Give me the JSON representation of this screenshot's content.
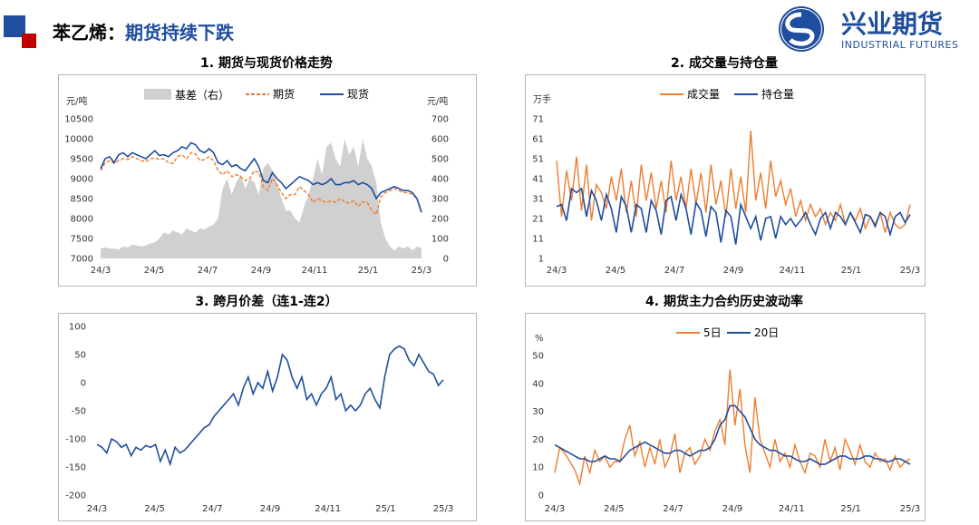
{
  "header": {
    "title_prefix": "苯乙烯：",
    "title_highlight": "期货持续下跌",
    "logo_cn": "兴业期货",
    "logo_en": "INDUSTRIAL FUTURES"
  },
  "colors": {
    "orange": "#ed7d31",
    "navy": "#1f4e9f",
    "gray": "#d0d0d0",
    "accent_red": "#c00000"
  },
  "chart_data": [
    {
      "type": "line",
      "title": "1. 期货与现货价格走势",
      "ylabel": "元/吨",
      "y2label": "元/吨",
      "ylim": [
        7000,
        10500
      ],
      "y2lim": [
        0,
        700
      ],
      "yticks": [
        7000,
        7500,
        8000,
        8500,
        9000,
        9500,
        10000,
        10500
      ],
      "y2ticks": [
        0,
        100,
        200,
        300,
        400,
        500,
        600,
        700
      ],
      "xticks": [
        "24/3",
        "24/5",
        "24/7",
        "24/9",
        "24/11",
        "25/1",
        "25/3"
      ],
      "legend": "top-center",
      "series": [
        {
          "name": "基差（右）",
          "kind": "area",
          "axis": "right",
          "values": [
            50,
            55,
            50,
            48,
            45,
            60,
            55,
            70,
            65,
            60,
            65,
            75,
            80,
            100,
            130,
            120,
            140,
            130,
            120,
            150,
            140,
            130,
            150,
            145,
            160,
            170,
            200,
            350,
            400,
            320,
            380,
            420,
            350,
            400,
            380,
            320,
            450,
            480,
            440,
            380,
            300,
            240,
            240,
            200,
            180,
            260,
            320,
            400,
            500,
            420,
            560,
            580,
            500,
            460,
            600,
            520,
            560,
            460,
            600,
            500,
            460,
            380,
            180,
            100,
            60,
            40,
            60,
            50,
            60,
            40,
            60,
            50
          ]
        },
        {
          "name": "期货",
          "kind": "dashed-line",
          "axis": "left",
          "values": [
            9200,
            9400,
            9450,
            9380,
            9450,
            9500,
            9480,
            9550,
            9500,
            9450,
            9420,
            9500,
            9520,
            9480,
            9500,
            9400,
            9380,
            9550,
            9600,
            9500,
            9650,
            9620,
            9450,
            9480,
            9550,
            9450,
            9200,
            9100,
            9200,
            9050,
            9100,
            9050,
            8950,
            9000,
            9200,
            9150,
            8800,
            8700,
            9000,
            8850,
            8650,
            8500,
            8600,
            8600,
            8800,
            8700,
            8600,
            8400,
            8500,
            8450,
            8400,
            8450,
            8400,
            8500,
            8420,
            8380,
            8450,
            8300,
            8420,
            8400,
            8200,
            8100,
            8550,
            8650,
            8700,
            8750,
            8700,
            8650,
            8650,
            8600,
            8500,
            8200
          ]
        },
        {
          "name": "现货",
          "kind": "line",
          "axis": "left",
          "values": [
            9250,
            9500,
            9550,
            9400,
            9600,
            9650,
            9550,
            9650,
            9600,
            9550,
            9500,
            9600,
            9700,
            9580,
            9600,
            9550,
            9650,
            9700,
            9800,
            9750,
            9900,
            9850,
            9700,
            9650,
            9750,
            9650,
            9400,
            9350,
            9450,
            9300,
            9350,
            9250,
            9200,
            9350,
            9500,
            9300,
            8950,
            8900,
            9150,
            9000,
            8900,
            8750,
            8850,
            8950,
            9050,
            9000,
            8950,
            8850,
            8900,
            8850,
            8900,
            9000,
            8850,
            8850,
            8900,
            8900,
            8950,
            8850,
            8900,
            8850,
            8750,
            8500,
            8650,
            8700,
            8750,
            8800,
            8750,
            8700,
            8700,
            8650,
            8500,
            8150
          ]
        }
      ]
    },
    {
      "type": "line",
      "title": "2. 成交量与持仓量",
      "ylabel": "万手",
      "ylim": [
        1,
        71
      ],
      "yticks": [
        1,
        11,
        21,
        31,
        41,
        51,
        61,
        71
      ],
      "xticks": [
        "24/3",
        "24/5",
        "24/7",
        "24/9",
        "24/11",
        "25/1",
        "25/3"
      ],
      "legend": "top-center",
      "series": [
        {
          "name": "成交量",
          "values": [
            50,
            22,
            45,
            30,
            52,
            25,
            48,
            20,
            38,
            34,
            26,
            42,
            30,
            46,
            24,
            40,
            22,
            48,
            30,
            44,
            26,
            40,
            24,
            50,
            30,
            42,
            26,
            46,
            28,
            44,
            24,
            48,
            28,
            40,
            22,
            46,
            26,
            42,
            24,
            65,
            30,
            44,
            26,
            50,
            32,
            40,
            28,
            36,
            22,
            30,
            20,
            28,
            22,
            26,
            18,
            24,
            20,
            28,
            18,
            24,
            20,
            26,
            16,
            22,
            18,
            24,
            14,
            24,
            18,
            16,
            18,
            28
          ]
        },
        {
          "name": "持仓量",
          "values": [
            27,
            28,
            20,
            36,
            34,
            36,
            22,
            35,
            30,
            20,
            33,
            26,
            14,
            32,
            27,
            14,
            28,
            26,
            14,
            30,
            25,
            13,
            30,
            32,
            20,
            33,
            26,
            13,
            29,
            25,
            12,
            27,
            24,
            9,
            25,
            22,
            8,
            28,
            22,
            16,
            22,
            10,
            21,
            22,
            11,
            22,
            18,
            21,
            17,
            20,
            24,
            18,
            13,
            21,
            24,
            16,
            24,
            22,
            18,
            24,
            19,
            14,
            23,
            22,
            17,
            24,
            22,
            13,
            22,
            24,
            19,
            23
          ]
        }
      ]
    },
    {
      "type": "line",
      "title": "3. 跨月价差（连1-连2）",
      "ylim": [
        -200,
        100
      ],
      "yticks": [
        -200,
        -150,
        -100,
        -50,
        0,
        50,
        100
      ],
      "xticks": [
        "24/3",
        "24/5",
        "24/7",
        "24/9",
        "24/11",
        "25/1",
        "25/3"
      ],
      "series": [
        {
          "name": "连1-连2",
          "values": [
            -110,
            -115,
            -125,
            -100,
            -105,
            -115,
            -110,
            -130,
            -115,
            -120,
            -112,
            -115,
            -110,
            -140,
            -120,
            -145,
            -115,
            -125,
            -120,
            -110,
            -100,
            -90,
            -80,
            -75,
            -60,
            -50,
            -40,
            -30,
            -20,
            -40,
            -10,
            10,
            -20,
            0,
            -10,
            20,
            -15,
            10,
            50,
            40,
            10,
            -10,
            10,
            -30,
            -20,
            -40,
            -20,
            -10,
            10,
            -30,
            -20,
            -50,
            -40,
            -50,
            -40,
            -20,
            -10,
            -30,
            -45,
            10,
            50,
            60,
            65,
            60,
            40,
            30,
            50,
            35,
            20,
            15,
            -5,
            5
          ]
        }
      ]
    },
    {
      "type": "line",
      "title": "4. 期货主力合约历史波动率",
      "ylabel": "%",
      "ylim": [
        0,
        50
      ],
      "yticks": [
        0,
        10,
        20,
        30,
        40,
        50
      ],
      "xticks": [
        "24/3",
        "24/5",
        "24/7",
        "24/9",
        "24/11",
        "25/1",
        "25/3"
      ],
      "legend": "top-center",
      "series": [
        {
          "name": "5日",
          "values": [
            8,
            17,
            15,
            12,
            9,
            4,
            14,
            8,
            16,
            12,
            14,
            10,
            12,
            12,
            20,
            25,
            14,
            19,
            10,
            17,
            11,
            20,
            10,
            14,
            22,
            8,
            15,
            17,
            11,
            14,
            20,
            16,
            23,
            27,
            18,
            45,
            25,
            38,
            18,
            8,
            35,
            20,
            15,
            10,
            20,
            12,
            15,
            10,
            18,
            12,
            8,
            15,
            14,
            10,
            20,
            12,
            17,
            9,
            20,
            16,
            11,
            18,
            12,
            10,
            15,
            12,
            13,
            9,
            14,
            10,
            12,
            13
          ]
        },
        {
          "name": "20日",
          "values": [
            18,
            17,
            16,
            15,
            14,
            13,
            13,
            12,
            12,
            13,
            14,
            13,
            13,
            12,
            14,
            16,
            17,
            18,
            19,
            18,
            17,
            16,
            15,
            15,
            16,
            16,
            15,
            14,
            15,
            16,
            16,
            17,
            20,
            25,
            27,
            32,
            32,
            30,
            28,
            24,
            20,
            18,
            17,
            16,
            16,
            15,
            14,
            14,
            13,
            12,
            12,
            13,
            12,
            11,
            11,
            12,
            13,
            14,
            14,
            13,
            13,
            13,
            14,
            14,
            13,
            13,
            12,
            12,
            13,
            13,
            12,
            11
          ]
        }
      ]
    }
  ]
}
